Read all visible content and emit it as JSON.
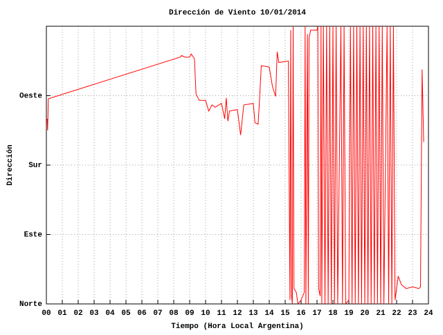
{
  "chart_data": {
    "type": "line",
    "title": "Dirección de Viento 10/01/2014",
    "xlabel": "Tiempo (Hora Local Argentina)",
    "ylabel": "Dirección",
    "grid": true,
    "xlim": [
      0,
      24
    ],
    "ylim": [
      0,
      360
    ],
    "xticks": [
      {
        "value": 0,
        "label": "00"
      },
      {
        "value": 1,
        "label": "01"
      },
      {
        "value": 2,
        "label": "02"
      },
      {
        "value": 3,
        "label": "03"
      },
      {
        "value": 4,
        "label": "04"
      },
      {
        "value": 5,
        "label": "05"
      },
      {
        "value": 6,
        "label": "06"
      },
      {
        "value": 7,
        "label": "07"
      },
      {
        "value": 8,
        "label": "08"
      },
      {
        "value": 9,
        "label": "09"
      },
      10,
      11,
      12,
      13,
      14,
      15,
      16,
      17,
      18,
      19,
      20,
      21,
      22,
      23,
      24
    ],
    "yticks": [
      {
        "value": 0,
        "label": "Norte"
      },
      {
        "value": 90,
        "label": "Este"
      },
      {
        "value": 180,
        "label": "Sur"
      },
      {
        "value": 270,
        "label": "Oeste"
      }
    ],
    "series": [
      {
        "color": "#ff0000",
        "x": [
          0.05,
          0.08,
          0.12,
          8.4,
          8.5,
          8.7,
          9,
          9.1,
          9.3,
          9.4,
          9.6,
          10,
          10.2,
          10.4,
          10.6,
          11,
          11.2,
          11.3,
          11.4,
          11.5,
          12,
          12.2,
          12.4,
          13,
          13.1,
          13.3,
          13.4,
          13.5,
          14,
          14.2,
          14.4,
          14.5,
          14.6,
          15.2,
          15.3,
          15.35,
          15.4,
          15.45,
          15.5,
          15.55,
          15.7,
          15.8,
          16,
          16.2,
          16.25,
          16.3,
          16.4,
          16.45,
          16.5,
          16.6,
          17,
          17.05,
          17.1,
          17.2,
          17.25,
          17.3,
          17.4,
          17.5,
          17.6,
          17.7,
          17.8,
          17.9,
          18,
          18.1,
          18.2,
          18.3,
          18.5,
          18.6,
          18.7,
          18.8,
          19,
          19.1,
          19.2,
          19.3,
          19.4,
          19.5,
          19.6,
          19.7,
          19.8,
          19.9,
          20,
          20.1,
          20.2,
          20.3,
          20.4,
          20.5,
          20.6,
          20.7,
          20.8,
          20.9,
          21,
          21.1,
          21.2,
          21.4,
          21.5,
          21.6,
          21.7,
          21.8,
          21.9,
          22.1,
          22.3,
          22.6,
          23,
          23.4,
          23.5,
          23.6,
          23.7
        ],
        "values": [
          240,
          225,
          266,
          320,
          322,
          320,
          320,
          324,
          318,
          272,
          264,
          264,
          250,
          258,
          255,
          260,
          240,
          267,
          237,
          250,
          252,
          219,
          258,
          260,
          235,
          233,
          269,
          309,
          307,
          282,
          269,
          327,
          313,
          315,
          5,
          355,
          10,
          0,
          360,
          20,
          15,
          0,
          5,
          15,
          360,
          0,
          350,
          0,
          345,
          355,
          355,
          360,
          20,
          10,
          360,
          0,
          360,
          0,
          360,
          0,
          360,
          0,
          360,
          0,
          360,
          0,
          360,
          0,
          360,
          0,
          5,
          360,
          0,
          360,
          0,
          360,
          0,
          360,
          0,
          360,
          0,
          360,
          0,
          360,
          0,
          360,
          0,
          360,
          0,
          360,
          0,
          360,
          0,
          360,
          0,
          360,
          0,
          360,
          5,
          36,
          25,
          20,
          22,
          20,
          22,
          304,
          210
        ]
      }
    ]
  }
}
